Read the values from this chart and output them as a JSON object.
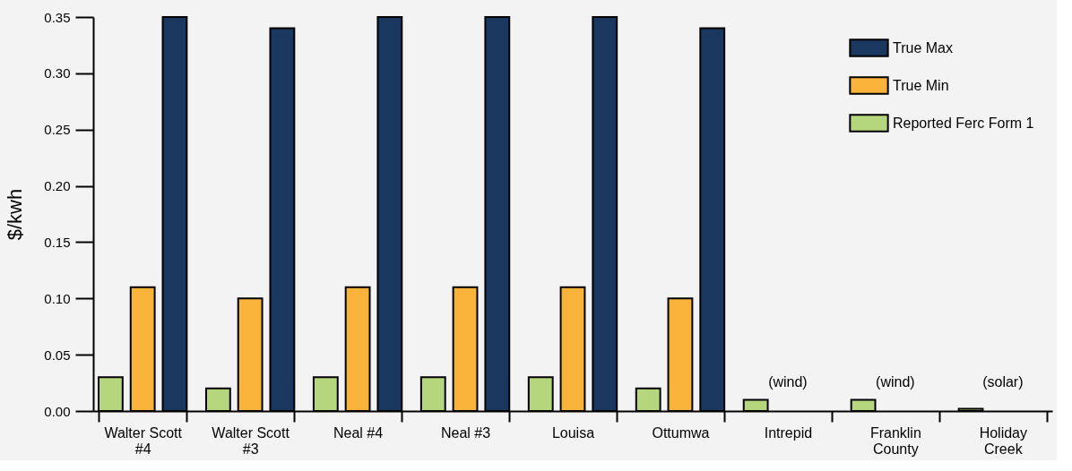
{
  "chart_data": {
    "type": "bar",
    "categories": [
      "Walter Scott #4",
      "Walter Scott #3",
      "Neal #4",
      "Neal #3",
      "Louisa",
      "Ottumwa",
      "Intrepid",
      "Franklin County",
      "Holiday Creek"
    ],
    "series": [
      {
        "name": "Reported Ferc Form 1",
        "color": "#b5d67c",
        "values": [
          0.03,
          0.02,
          0.03,
          0.03,
          0.03,
          0.02,
          0.01,
          0.01,
          0.002
        ]
      },
      {
        "name": "True Min",
        "color": "#f9b33b",
        "values": [
          0.11,
          0.1,
          0.11,
          0.11,
          0.11,
          0.1,
          null,
          null,
          null
        ]
      },
      {
        "name": "True Max",
        "color": "#19375f",
        "values": [
          0.35,
          0.34,
          0.35,
          0.35,
          0.35,
          0.34,
          null,
          null,
          null
        ]
      }
    ],
    "ylabel": "$/kwh",
    "ylim": [
      0,
      0.35
    ],
    "yticks": [
      {
        "value": 0,
        "label": "0.00"
      },
      {
        "value": 0.05,
        "label": "0.05"
      },
      {
        "value": 0.1,
        "label": "0.10"
      },
      {
        "value": 0.15,
        "label": "0.15"
      },
      {
        "value": 0.2,
        "label": "0.20"
      },
      {
        "value": 0.25,
        "label": "0.25"
      },
      {
        "value": 0.3,
        "label": "0.30"
      },
      {
        "value": 0.35,
        "label": "0.35"
      }
    ],
    "annotations": [
      "(wind)",
      "(wind)",
      "(solar)"
    ],
    "legend": "top right",
    "grid": false
  }
}
